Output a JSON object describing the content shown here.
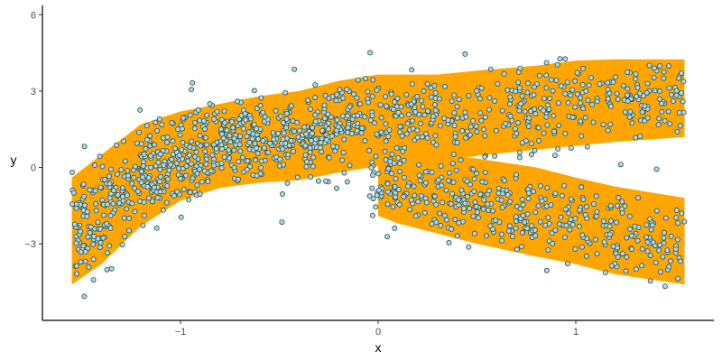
{
  "chart_data": {
    "type": "scatter",
    "title": "",
    "xlabel": "x",
    "ylabel": "y",
    "xlim": [
      -1.72,
      1.72
    ],
    "ylim": [
      -5.8,
      6.3
    ],
    "x_ticks": [
      -1,
      0,
      1
    ],
    "x_tick_labels": [
      "−1",
      "0",
      "1"
    ],
    "y_ticks": [
      -3,
      0,
      3,
      6
    ],
    "y_tick_labels": [
      "−3",
      "0",
      "3",
      "6"
    ],
    "grid": false,
    "legend": "none",
    "ribbon": {
      "color": "#FFA500",
      "upper_branch": {
        "x": [
          -1.55,
          -1.4,
          -1.2,
          -1.0,
          -0.8,
          -0.6,
          -0.4,
          -0.2,
          0.0,
          0.1,
          0.3,
          0.5,
          0.8,
          1.0,
          1.2,
          1.55
        ],
        "upper": [
          -0.4,
          0.5,
          1.7,
          2.2,
          2.5,
          2.8,
          3.0,
          3.4,
          3.65,
          3.65,
          3.65,
          3.8,
          4.0,
          4.2,
          4.25,
          4.25
        ],
        "lower": [
          -4.6,
          -3.8,
          -2.3,
          -1.3,
          -0.8,
          -0.6,
          -0.5,
          -0.2,
          0.05,
          0.1,
          0.25,
          0.45,
          0.7,
          0.85,
          1.0,
          1.2
        ]
      },
      "lower_branch": {
        "x": [
          0.0,
          0.1,
          0.3,
          0.5,
          0.8,
          1.0,
          1.2,
          1.55
        ],
        "upper": [
          0.6,
          0.9,
          0.5,
          0.35,
          0.0,
          -0.4,
          -0.75,
          -1.2
        ],
        "lower": [
          -1.9,
          -2.2,
          -2.6,
          -3.0,
          -3.5,
          -3.8,
          -4.2,
          -4.6
        ]
      }
    },
    "points_style": {
      "fill": "#ADD8E6",
      "stroke": "#2F4F4F",
      "count": 1500
    }
  }
}
